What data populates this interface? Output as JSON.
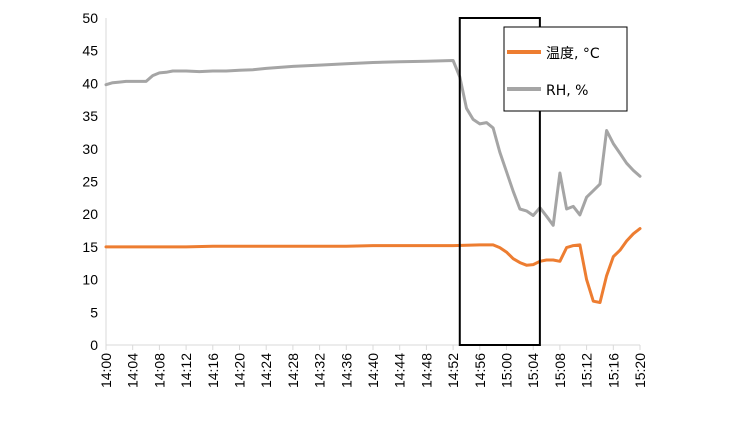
{
  "chart_data": {
    "type": "line",
    "title": "",
    "xlabel": "",
    "ylabel": "",
    "ylim": [
      0,
      50
    ],
    "yticks": [
      0,
      5,
      10,
      15,
      20,
      25,
      30,
      35,
      40,
      45,
      50
    ],
    "x_tick_labels": [
      "14:00",
      "14:04",
      "14:08",
      "14:12",
      "14:16",
      "14:20",
      "14:24",
      "14:28",
      "14:32",
      "14:36",
      "14:40",
      "14:44",
      "14:48",
      "14:52",
      "14:56",
      "15:00",
      "15:04",
      "15:08",
      "15:12",
      "15:16",
      "15:20"
    ],
    "x_step_minutes": 4,
    "grid": false,
    "legend_position": "top-right",
    "highlight_box": {
      "x_from": "14:53",
      "x_to": "15:05"
    },
    "series": [
      {
        "name": "温度, °C",
        "color": "#ED7D31",
        "points": [
          [
            "14:00",
            15.0
          ],
          [
            "14:04",
            15.0
          ],
          [
            "14:08",
            15.0
          ],
          [
            "14:12",
            15.0
          ],
          [
            "14:16",
            15.1
          ],
          [
            "14:20",
            15.1
          ],
          [
            "14:24",
            15.1
          ],
          [
            "14:28",
            15.1
          ],
          [
            "14:32",
            15.1
          ],
          [
            "14:36",
            15.1
          ],
          [
            "14:40",
            15.2
          ],
          [
            "14:44",
            15.2
          ],
          [
            "14:48",
            15.2
          ],
          [
            "14:52",
            15.2
          ],
          [
            "14:56",
            15.3
          ],
          [
            "14:58",
            15.3
          ],
          [
            "14:59",
            14.9
          ],
          [
            "15:00",
            14.2
          ],
          [
            "15:01",
            13.2
          ],
          [
            "15:02",
            12.6
          ],
          [
            "15:03",
            12.2
          ],
          [
            "15:04",
            12.3
          ],
          [
            "15:05",
            12.8
          ],
          [
            "15:06",
            13.0
          ],
          [
            "15:07",
            13.0
          ],
          [
            "15:08",
            12.8
          ],
          [
            "15:09",
            14.9
          ],
          [
            "15:10",
            15.2
          ],
          [
            "15:11",
            15.3
          ],
          [
            "15:12",
            10.0
          ],
          [
            "15:13",
            6.7
          ],
          [
            "15:14",
            6.5
          ],
          [
            "15:15",
            10.6
          ],
          [
            "15:16",
            13.5
          ],
          [
            "15:17",
            14.5
          ],
          [
            "15:18",
            15.9
          ],
          [
            "15:19",
            17.0
          ],
          [
            "15:20",
            17.8
          ]
        ]
      },
      {
        "name": "RH, %",
        "color": "#A5A5A5",
        "points": [
          [
            "14:00",
            39.8
          ],
          [
            "14:01",
            40.1
          ],
          [
            "14:02",
            40.2
          ],
          [
            "14:03",
            40.3
          ],
          [
            "14:04",
            40.3
          ],
          [
            "14:05",
            40.3
          ],
          [
            "14:06",
            40.3
          ],
          [
            "14:07",
            41.2
          ],
          [
            "14:08",
            41.6
          ],
          [
            "14:09",
            41.7
          ],
          [
            "14:10",
            41.9
          ],
          [
            "14:12",
            41.9
          ],
          [
            "14:14",
            41.8
          ],
          [
            "14:16",
            41.9
          ],
          [
            "14:18",
            41.9
          ],
          [
            "14:20",
            42.0
          ],
          [
            "14:22",
            42.1
          ],
          [
            "14:24",
            42.3
          ],
          [
            "14:28",
            42.6
          ],
          [
            "14:32",
            42.8
          ],
          [
            "14:36",
            43.0
          ],
          [
            "14:40",
            43.2
          ],
          [
            "14:44",
            43.3
          ],
          [
            "14:48",
            43.4
          ],
          [
            "14:52",
            43.5
          ],
          [
            "14:53",
            41.0
          ],
          [
            "14:54",
            36.2
          ],
          [
            "14:55",
            34.5
          ],
          [
            "14:56",
            33.8
          ],
          [
            "14:57",
            34.0
          ],
          [
            "14:58",
            33.2
          ],
          [
            "14:59",
            29.5
          ],
          [
            "15:00",
            26.5
          ],
          [
            "15:01",
            23.5
          ],
          [
            "15:02",
            20.8
          ],
          [
            "15:03",
            20.5
          ],
          [
            "15:04",
            19.8
          ],
          [
            "15:05",
            21.0
          ],
          [
            "15:06",
            19.7
          ],
          [
            "15:07",
            18.3
          ],
          [
            "15:08",
            26.3
          ],
          [
            "15:09",
            20.8
          ],
          [
            "15:10",
            21.2
          ],
          [
            "15:11",
            19.9
          ],
          [
            "15:12",
            22.6
          ],
          [
            "15:13",
            23.6
          ],
          [
            "15:14",
            24.6
          ],
          [
            "15:15",
            32.8
          ],
          [
            "15:16",
            30.8
          ],
          [
            "15:17",
            29.3
          ],
          [
            "15:18",
            27.8
          ],
          [
            "15:19",
            26.7
          ],
          [
            "15:20",
            25.8
          ]
        ]
      }
    ]
  }
}
